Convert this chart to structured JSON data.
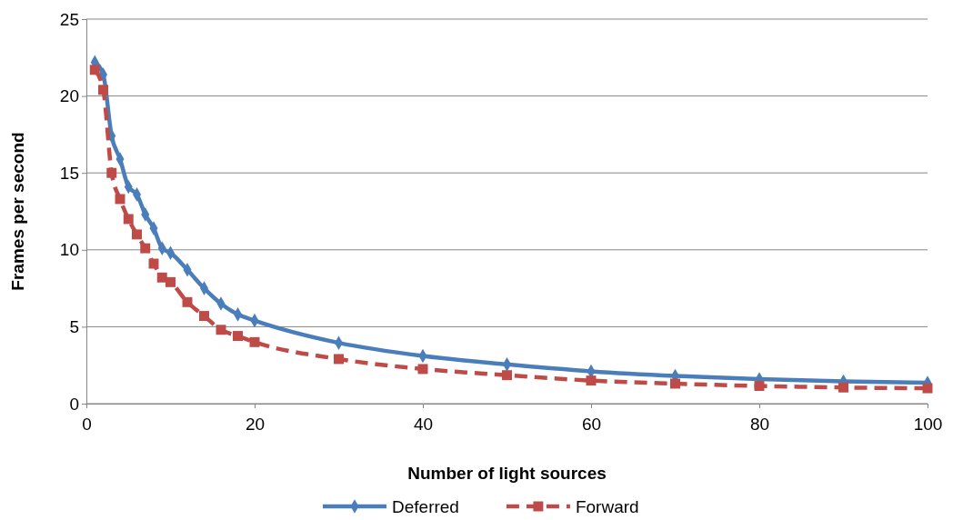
{
  "chart_data": {
    "type": "line",
    "xlabel": "Number of light sources",
    "ylabel": "Frames per second",
    "x": [
      1,
      2,
      3,
      4,
      5,
      6,
      7,
      8,
      9,
      10,
      12,
      14,
      16,
      18,
      20,
      30,
      40,
      50,
      60,
      70,
      80,
      90,
      100
    ],
    "series": [
      {
        "name": "Deferred",
        "color": "#4a7ebb",
        "marker": "diamond",
        "line_style": "solid",
        "values": [
          22.2,
          21.4,
          17.4,
          15.9,
          14.1,
          13.6,
          12.3,
          11.4,
          10.1,
          9.8,
          8.7,
          7.5,
          6.5,
          5.8,
          5.4,
          3.95,
          3.1,
          2.55,
          2.1,
          1.8,
          1.6,
          1.45,
          1.35
        ]
      },
      {
        "name": "Forward",
        "color": "#be4b48",
        "marker": "square",
        "line_style": "dashed",
        "values": [
          21.7,
          20.4,
          15.0,
          13.3,
          12.0,
          11.0,
          10.1,
          9.1,
          8.2,
          7.9,
          6.6,
          5.7,
          4.8,
          4.4,
          4.0,
          2.9,
          2.25,
          1.85,
          1.5,
          1.3,
          1.15,
          1.05,
          1.0
        ]
      }
    ],
    "xlim": [
      0,
      100
    ],
    "xticks": [
      0,
      20,
      40,
      60,
      80,
      100
    ],
    "ylim": [
      0,
      25
    ],
    "yticks": [
      0,
      5,
      10,
      15,
      20,
      25
    ],
    "grid": "y",
    "legend": "bottom"
  }
}
